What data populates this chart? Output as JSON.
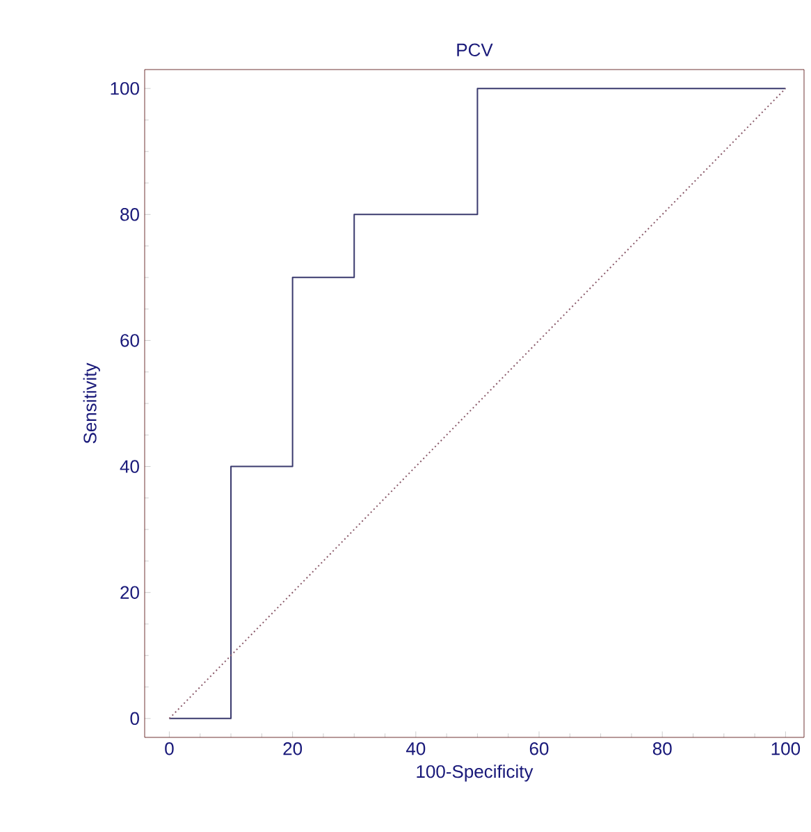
{
  "chart_data": {
    "type": "line",
    "title": "PCV",
    "xlabel": "100-Specificity",
    "ylabel": "Sensitivity",
    "series": [
      {
        "color": "#3a3a6e",
        "line_style": "solid",
        "x": [
          0,
          10,
          10,
          20,
          20,
          30,
          30,
          50,
          50,
          100
        ],
        "values": [
          0,
          0,
          40,
          40,
          70,
          70,
          80,
          80,
          100,
          100
        ]
      },
      {
        "color": "#8a5a6a",
        "line_style": "dotted",
        "x": [
          0,
          100
        ],
        "values": [
          0,
          100
        ]
      }
    ],
    "xlim": [
      -4,
      103
    ],
    "ylim": [
      -3,
      103
    ],
    "xticks": [
      0,
      20,
      40,
      60,
      80,
      100
    ],
    "yticks": [
      0,
      20,
      40,
      60,
      80,
      100
    ],
    "grid": false,
    "marker": "none"
  }
}
